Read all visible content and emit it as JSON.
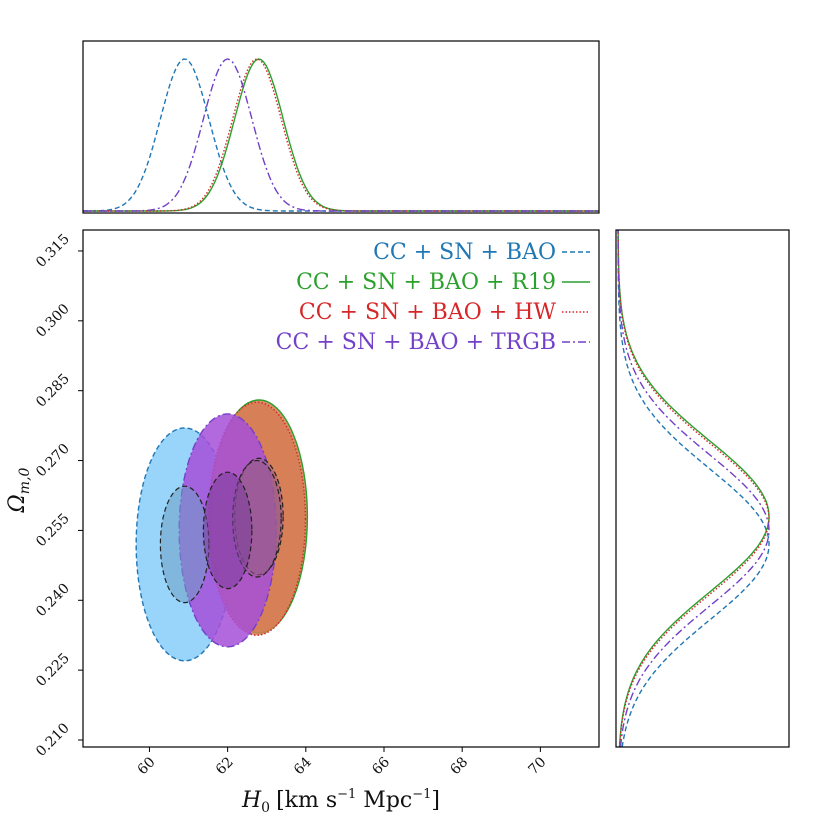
{
  "chart_data": {
    "type": "contour",
    "title": "",
    "xlabel": "H_0 [km s^-1 Mpc^-1]",
    "ylabel": "Ω_m,0",
    "xlabel_parts": {
      "main": "H",
      "sub": "0",
      "units": "[km s",
      "exp1": "−1",
      "units2": " Mpc",
      "exp2": "−1",
      "close": "]"
    },
    "ylabel_parts": {
      "main": "Ω",
      "sub": "m,0"
    },
    "xlim": [
      58.3,
      71.5
    ],
    "ylim": [
      0.2085,
      0.3195
    ],
    "x_ticks": [
      "60",
      "62",
      "64",
      "66",
      "68",
      "70"
    ],
    "y_ticks": [
      "0.210",
      "0.225",
      "0.240",
      "0.255",
      "0.270",
      "0.285",
      "0.300",
      "0.315"
    ],
    "legend_position": "top-right",
    "series": [
      {
        "name": "CC + SN + BAO",
        "color": "#1f77b4",
        "fill": "#87cefa",
        "inner_fill": "#6e9fc4",
        "dash": "dashed",
        "mean_H0": 60.9,
        "sd_H0": 0.62,
        "mean_Om": 0.252,
        "sd_Om": 0.0125
      },
      {
        "name": "CC + SN + BAO + R19",
        "color": "#2ca02c",
        "fill": "#d67d52",
        "inner_fill": "#9a5d8e",
        "dash": "solid",
        "mean_H0": 62.8,
        "sd_H0": 0.62,
        "mean_Om": 0.258,
        "sd_Om": 0.0125
      },
      {
        "name": "CC + SN + BAO + HW",
        "color": "#d62728",
        "fill": "#d67d52",
        "inner_fill": "#9a5d8e",
        "dash": "dotted",
        "mean_H0": 62.75,
        "sd_H0": 0.62,
        "mean_Om": 0.2575,
        "sd_Om": 0.0125
      },
      {
        "name": "CC + SN + BAO + TRGB",
        "color": "#7340c8",
        "fill": "#a64fd8",
        "inner_fill": "#7a3e9c",
        "dash": "dashdot",
        "mean_H0": 62.0,
        "sd_H0": 0.62,
        "mean_Om": 0.255,
        "sd_Om": 0.0125
      }
    ]
  }
}
